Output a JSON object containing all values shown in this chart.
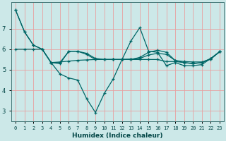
{
  "title": "",
  "xlabel": "Humidex (Indice chaleur)",
  "background_color": "#cce8e8",
  "grid_color": "#e8a0a0",
  "line_color": "#006666",
  "xlim": [
    -0.5,
    23.5
  ],
  "ylim": [
    2.5,
    8.3
  ],
  "yticks": [
    3,
    4,
    5,
    6,
    7
  ],
  "xticks": [
    0,
    1,
    2,
    3,
    4,
    5,
    6,
    7,
    8,
    9,
    10,
    11,
    12,
    13,
    14,
    15,
    16,
    17,
    18,
    19,
    20,
    21,
    22,
    23
  ],
  "line1_x": [
    0,
    1,
    2,
    3,
    4,
    5,
    6,
    7,
    8,
    9,
    10,
    11,
    12,
    13,
    14,
    15,
    16,
    17,
    18,
    19,
    20,
    21,
    22,
    23
  ],
  "line1_y": [
    7.9,
    6.85,
    6.2,
    6.0,
    5.35,
    4.8,
    4.6,
    4.5,
    3.6,
    2.92,
    3.85,
    4.55,
    5.5,
    6.4,
    7.05,
    5.9,
    5.85,
    5.2,
    5.35,
    5.2,
    5.2,
    5.25,
    5.55,
    5.88
  ],
  "line2_x": [
    0,
    1,
    2,
    3,
    4,
    5,
    6,
    7,
    8,
    9,
    10,
    11,
    12,
    13,
    14,
    15,
    16,
    17,
    18,
    19,
    20,
    21,
    22,
    23
  ],
  "line2_y": [
    7.9,
    6.85,
    6.2,
    6.0,
    5.35,
    5.3,
    5.9,
    5.9,
    5.8,
    5.55,
    5.5,
    5.5,
    5.5,
    5.5,
    5.5,
    5.5,
    5.5,
    5.4,
    5.4,
    5.35,
    5.3,
    5.35,
    5.55,
    5.88
  ],
  "line3_x": [
    4,
    5,
    6,
    7,
    8,
    9,
    10,
    11,
    12,
    13,
    14,
    15,
    16,
    17,
    18,
    19,
    20,
    21,
    22,
    23
  ],
  "line3_y": [
    5.35,
    5.38,
    5.42,
    5.46,
    5.48,
    5.5,
    5.5,
    5.5,
    5.5,
    5.52,
    5.55,
    5.72,
    5.8,
    5.75,
    5.45,
    5.4,
    5.38,
    5.38,
    5.52,
    5.88
  ],
  "line4_x": [
    0,
    1,
    2,
    3,
    4,
    5,
    6,
    7,
    8,
    9,
    10,
    11,
    12,
    13,
    14,
    15,
    16,
    17,
    18,
    19,
    20,
    21,
    22,
    23
  ],
  "line4_y": [
    6.0,
    6.0,
    6.0,
    6.0,
    5.35,
    5.35,
    5.9,
    5.9,
    5.75,
    5.5,
    5.5,
    5.5,
    5.5,
    5.5,
    5.6,
    5.85,
    5.95,
    5.85,
    5.45,
    5.35,
    5.3,
    5.35,
    5.52,
    5.88
  ]
}
